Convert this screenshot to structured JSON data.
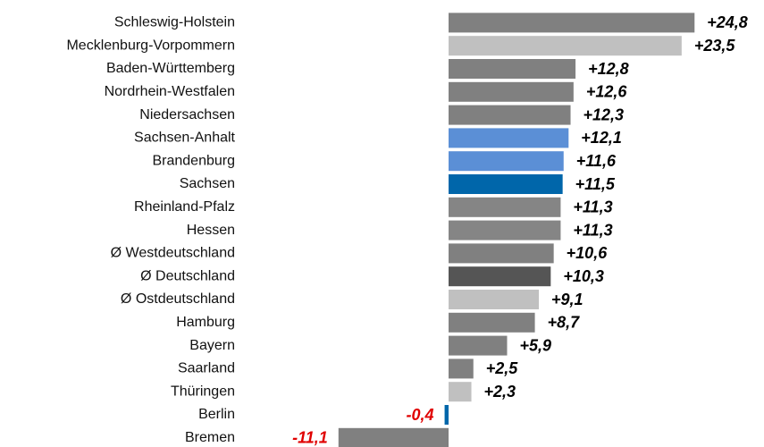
{
  "chart_data": {
    "type": "barh",
    "categories": [
      "Schleswig-Holstein",
      "Mecklenburg-Vorpommern",
      "Baden-Württemberg",
      "Nordrhein-Westfalen",
      "Niedersachsen",
      "Sachsen-Anhalt",
      "Brandenburg",
      "Sachsen",
      "Rheinland-Pfalz",
      "Hessen",
      "Ø Westdeutschland",
      "Ø Deutschland",
      "Ø Ostdeutschland",
      "Hamburg",
      "Bayern",
      "Saarland",
      "Thüringen",
      "Berlin",
      "Bremen"
    ],
    "values": [
      24.8,
      23.5,
      12.8,
      12.6,
      12.3,
      12.1,
      11.6,
      11.5,
      11.3,
      11.3,
      10.6,
      10.3,
      9.1,
      8.7,
      5.9,
      2.5,
      2.3,
      -0.4,
      -11.1
    ],
    "value_labels": [
      "+24,8",
      "+23,5",
      "+12,8",
      "+12,6",
      "+12,3",
      "+12,1",
      "+11,6",
      "+11,5",
      "+11,3",
      "+11,3",
      "+10,6",
      "+10,3",
      "+9,1",
      "+8,7",
      "+5,9",
      "+2,5",
      "+2,3",
      "-0,4",
      "-11,1"
    ],
    "colors": [
      "#808080",
      "#c0c0c0",
      "#808080",
      "#808080",
      "#808080",
      "#5b8fd6",
      "#5b8fd6",
      "#0066aa",
      "#858585",
      "#858585",
      "#808080",
      "#555555",
      "#c0c0c0",
      "#808080",
      "#808080",
      "#808080",
      "#c0c0c0",
      "#0066aa",
      "#808080"
    ],
    "negative_label_color": "#e00000",
    "label_color": "#000000",
    "xlim": [
      -20,
      30
    ]
  }
}
